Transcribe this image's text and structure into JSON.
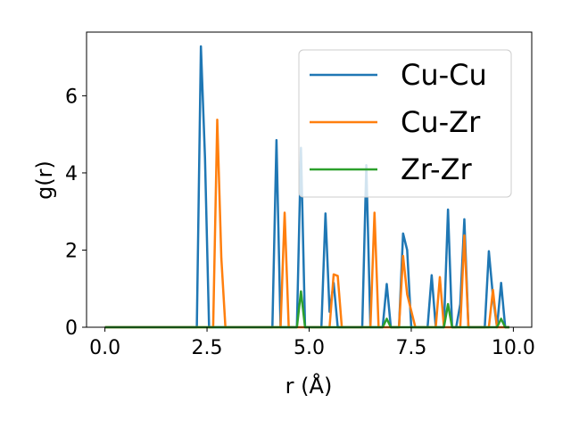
{
  "chart_data": {
    "type": "line",
    "xlabel": "r (Å)",
    "ylabel": "g(r)",
    "xlim": [
      -0.45,
      10.45
    ],
    "ylim": [
      0,
      7.65
    ],
    "xticks": [
      0.0,
      2.5,
      5.0,
      7.5,
      10.0
    ],
    "xtick_labels": [
      "0.0",
      "2.5",
      "5.0",
      "7.5",
      "10.0"
    ],
    "yticks": [
      0,
      2,
      4,
      6
    ],
    "ytick_labels": [
      "0",
      "2",
      "4",
      "6"
    ],
    "legend_position": "upper right",
    "grid": false,
    "series": [
      {
        "name": "Cu-Cu",
        "color": "#1f77b4",
        "x": [
          0,
          2.25,
          2.35,
          2.45,
          2.55,
          4.1,
          4.2,
          4.3,
          4.7,
          4.8,
          4.9,
          5.3,
          5.4,
          5.5,
          5.6,
          5.7,
          6.3,
          6.4,
          6.5,
          6.8,
          6.9,
          7.0,
          7.2,
          7.3,
          7.4,
          7.5,
          7.9,
          8.0,
          8.1,
          8.3,
          8.4,
          8.5,
          8.6,
          8.7,
          8.8,
          8.9,
          9.3,
          9.4,
          9.5,
          9.6,
          9.7,
          9.8,
          9.9
        ],
        "y": [
          0,
          0,
          7.28,
          4.4,
          0,
          0,
          4.85,
          0,
          0,
          4.65,
          0,
          0,
          2.95,
          0.4,
          1.15,
          0,
          0,
          4.2,
          0,
          0,
          1.12,
          0,
          0,
          2.43,
          2.0,
          0,
          0,
          1.35,
          0,
          0,
          3.05,
          0,
          0,
          0.6,
          2.8,
          0,
          0,
          1.97,
          0.8,
          0,
          1.15,
          0,
          0
        ]
      },
      {
        "name": "Cu-Zr",
        "color": "#ff7f0e",
        "x": [
          0,
          2.65,
          2.75,
          2.85,
          2.95,
          4.3,
          4.4,
          4.5,
          5.5,
          5.6,
          5.7,
          5.8,
          6.5,
          6.6,
          6.7,
          7.2,
          7.3,
          7.4,
          7.6,
          8.1,
          8.2,
          8.3,
          8.7,
          8.8,
          8.9,
          9.4,
          9.5,
          9.6,
          9.9
        ],
        "y": [
          0,
          0,
          5.38,
          1.8,
          0,
          0,
          2.97,
          0,
          0,
          1.37,
          1.33,
          0,
          0,
          2.97,
          0,
          0,
          1.85,
          0.85,
          0,
          0,
          1.3,
          0,
          0,
          2.38,
          0,
          0,
          0.97,
          0,
          0
        ]
      },
      {
        "name": "Zr-Zr",
        "color": "#2ca02c",
        "x": [
          0,
          4.7,
          4.8,
          4.9,
          6.8,
          6.9,
          7.0,
          8.3,
          8.4,
          8.5,
          9.6,
          9.7,
          9.8,
          9.9
        ],
        "y": [
          0,
          0,
          0.93,
          0,
          0,
          0.22,
          0,
          0,
          0.6,
          0,
          0,
          0.22,
          0,
          0
        ]
      }
    ]
  }
}
